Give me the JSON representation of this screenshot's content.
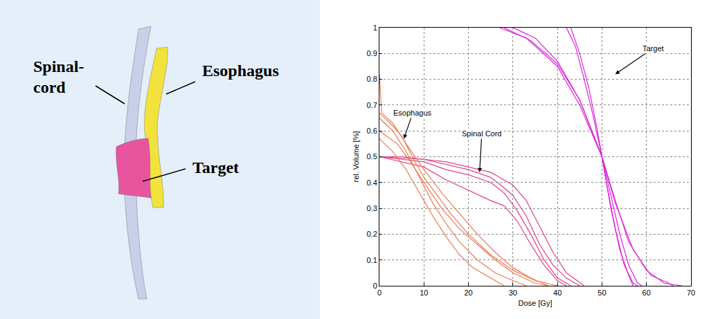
{
  "diagram": {
    "structures": [
      {
        "label": "Spinal-cord",
        "color": "#c9cfe8"
      },
      {
        "label": "Esophagus",
        "color": "#f2e23c"
      },
      {
        "label": "Target",
        "color": "#e8559f"
      }
    ]
  },
  "chart_data": {
    "type": "line",
    "x_label": "Dose [Gy]",
    "y_label": "rel. Volume [%]",
    "xlim": [
      0,
      70
    ],
    "xticks": [
      0,
      10,
      20,
      30,
      40,
      50,
      60,
      70
    ],
    "ylim": [
      0,
      1
    ],
    "yticks": [
      0,
      0.1,
      0.2,
      0.3,
      0.4,
      0.5,
      0.6,
      0.7,
      0.8,
      0.9,
      1
    ],
    "grid": true,
    "line_style": "solid",
    "series": [
      {
        "name": "Target",
        "color": "#dd22dd",
        "annotation": {
          "x": 53,
          "y": 0.82,
          "label_x": 61.5,
          "label_y": 0.92
        },
        "curves": [
          {
            "x": [
              30,
              35,
              40,
              45,
              50,
              53,
              56,
              60,
              64,
              68
            ],
            "values": [
              1,
              0.96,
              0.87,
              0.72,
              0.5,
              0.33,
              0.17,
              0.06,
              0.01,
              0
            ]
          },
          {
            "x": [
              27,
              33,
              40,
              45,
              50,
              52,
              54,
              56,
              58,
              59
            ],
            "values": [
              1,
              0.96,
              0.85,
              0.7,
              0.5,
              0.35,
              0.2,
              0.08,
              0.01,
              0
            ]
          },
          {
            "x": [
              42,
              44,
              46,
              48,
              50,
              51,
              53,
              55,
              57,
              58
            ],
            "values": [
              1,
              0.93,
              0.8,
              0.66,
              0.5,
              0.4,
              0.22,
              0.08,
              0.01,
              0
            ]
          },
          {
            "x": [
              43,
              45,
              47,
              49,
              50,
              52,
              54,
              56,
              57
            ],
            "values": [
              1,
              0.9,
              0.77,
              0.6,
              0.5,
              0.3,
              0.14,
              0.04,
              0
            ]
          },
          {
            "x": [
              28,
              34,
              40,
              45,
              50,
              53,
              57,
              61,
              65,
              66
            ],
            "values": [
              1,
              0.95,
              0.86,
              0.72,
              0.5,
              0.32,
              0.14,
              0.04,
              0.01,
              0
            ]
          }
        ]
      },
      {
        "name": "Spinal Cord",
        "color": "#e0408a",
        "annotation": {
          "x": 22.5,
          "y": 0.44,
          "label_x": 23,
          "label_y": 0.59
        },
        "curves": [
          {
            "x": [
              0,
              5,
              10,
              15,
              20,
              25,
              28,
              30,
              33,
              36,
              39,
              42,
              45
            ],
            "values": [
              0.5,
              0.5,
              0.49,
              0.47,
              0.45,
              0.42,
              0.38,
              0.35,
              0.27,
              0.16,
              0.08,
              0.03,
              0
            ]
          },
          {
            "x": [
              0,
              10,
              15,
              20,
              25,
              28,
              31,
              34,
              37,
              40,
              43
            ],
            "values": [
              0.5,
              0.48,
              0.45,
              0.43,
              0.4,
              0.36,
              0.29,
              0.2,
              0.1,
              0.03,
              0
            ]
          },
          {
            "x": [
              0,
              10,
              15,
              20,
              25,
              28,
              31,
              34,
              37,
              40,
              42
            ],
            "values": [
              0.5,
              0.46,
              0.41,
              0.37,
              0.33,
              0.31,
              0.25,
              0.16,
              0.08,
              0.02,
              0
            ]
          },
          {
            "x": [
              0,
              10,
              15,
              20,
              25,
              30,
              33,
              36,
              39,
              42,
              46
            ],
            "values": [
              0.5,
              0.49,
              0.48,
              0.46,
              0.44,
              0.39,
              0.33,
              0.23,
              0.13,
              0.05,
              0
            ]
          }
        ]
      },
      {
        "name": "Esophagus",
        "color": "#f07850",
        "annotation": {
          "x": 5.5,
          "y": 0.57,
          "label_x": 7.5,
          "label_y": 0.67
        },
        "curves": [
          {
            "x": [
              0,
              3,
              5,
              8,
              10,
              13,
              16,
              20,
              25,
              30,
              35,
              40
            ],
            "values": [
              0.67,
              0.62,
              0.58,
              0.48,
              0.42,
              0.35,
              0.28,
              0.2,
              0.12,
              0.06,
              0.02,
              0
            ]
          },
          {
            "x": [
              0,
              3,
              6,
              9,
              12,
              15,
              18,
              22,
              26,
              30,
              33
            ],
            "values": [
              0.65,
              0.6,
              0.52,
              0.42,
              0.32,
              0.24,
              0.17,
              0.1,
              0.05,
              0.02,
              0
            ]
          },
          {
            "x": [
              0,
              4,
              7,
              10,
              14,
              18,
              22,
              26,
              30,
              35,
              38
            ],
            "values": [
              0.6,
              0.55,
              0.48,
              0.4,
              0.3,
              0.22,
              0.16,
              0.1,
              0.05,
              0.01,
              0
            ]
          },
          {
            "x": [
              0,
              3,
              6,
              9,
              12,
              15,
              18,
              21,
              25,
              28
            ],
            "values": [
              0.57,
              0.52,
              0.45,
              0.36,
              0.27,
              0.19,
              0.12,
              0.07,
              0.03,
              0
            ]
          },
          {
            "x": [
              0,
              0.5,
              3,
              6,
              10,
              14,
              18,
              22,
              26,
              30,
              34,
              38
            ],
            "values": [
              0.82,
              0.67,
              0.63,
              0.55,
              0.45,
              0.36,
              0.28,
              0.2,
              0.13,
              0.07,
              0.03,
              0
            ]
          }
        ]
      }
    ]
  }
}
